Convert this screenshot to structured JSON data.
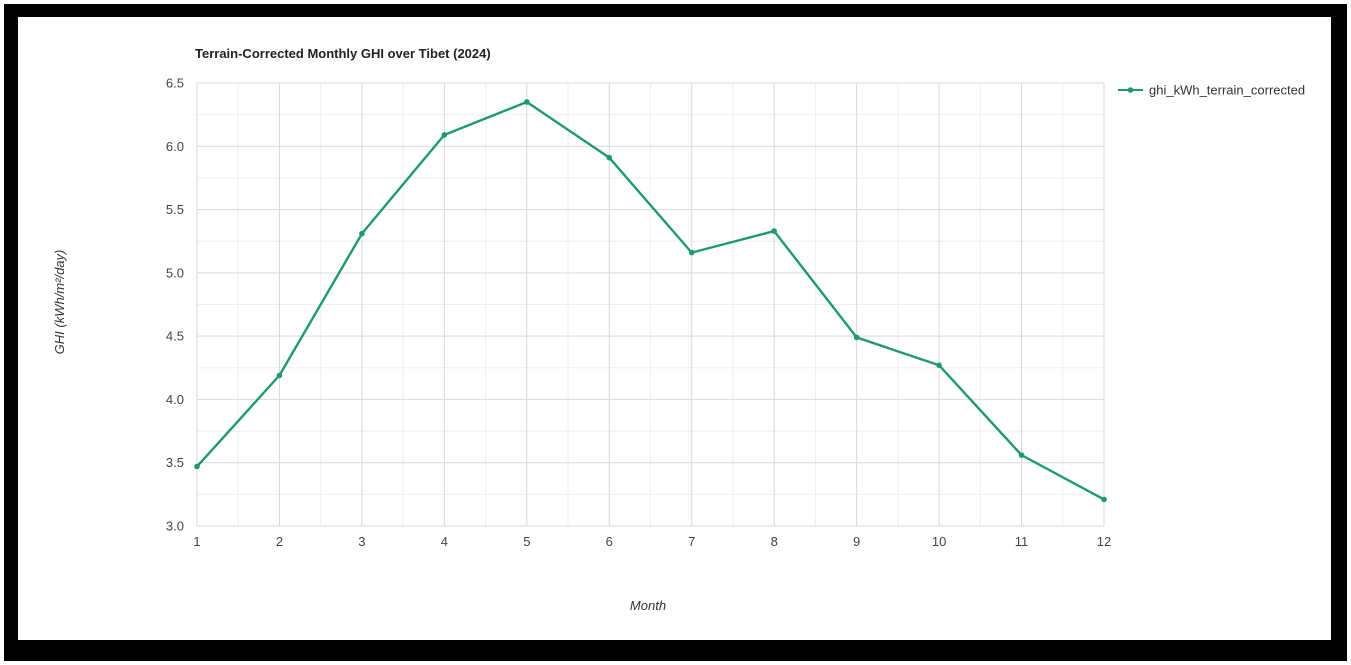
{
  "chart_data": {
    "type": "line",
    "title": "Terrain-Corrected Monthly GHI over Tibet (2024)",
    "xlabel": "Month",
    "ylabel": "GHI (kWh/m²/day)",
    "x": [
      1,
      2,
      3,
      4,
      5,
      6,
      7,
      8,
      9,
      10,
      11,
      12
    ],
    "series": [
      {
        "name": "ghi_kWh_terrain_corrected",
        "values": [
          3.47,
          4.19,
          5.31,
          6.09,
          6.35,
          5.91,
          5.16,
          5.33,
          4.49,
          4.27,
          3.56,
          3.21
        ],
        "color": "#1f9a6f"
      }
    ],
    "xlim": [
      1,
      12
    ],
    "ylim": [
      3.0,
      6.5
    ],
    "xticks": [
      "1",
      "2",
      "3",
      "4",
      "5",
      "6",
      "7",
      "8",
      "9",
      "10",
      "11",
      "12"
    ],
    "yticks": [
      "3.0",
      "3.5",
      "4.0",
      "4.5",
      "5.0",
      "5.5",
      "6.0",
      "6.5"
    ],
    "grid": true,
    "minor_grid": true,
    "legend_position": "top-right",
    "colors": {
      "grid_major": "#d9d9d9",
      "grid_minor": "#efefef",
      "frame": "#000000"
    }
  }
}
